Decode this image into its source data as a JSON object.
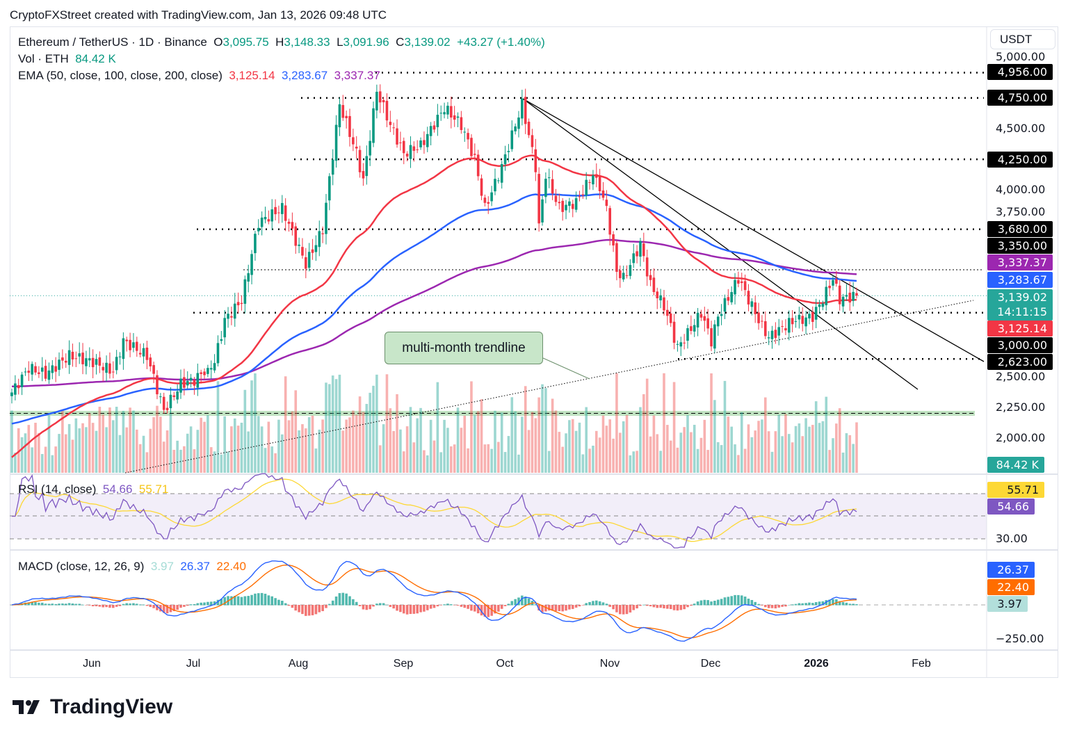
{
  "header": {
    "credit": "CryptoFXStreet created with TradingView.com, Jan 13, 2026 09:48 UTC"
  },
  "legend": {
    "symbol": "Ethereum / TetherUS · 1D · Binance",
    "o_label": "O",
    "o": "3,095.75",
    "h_label": "H",
    "h": "3,148.33",
    "l_label": "L",
    "l": "3,091.96",
    "c_label": "C",
    "c": "3,139.02",
    "change": "+43.27 (+1.40%)",
    "vol_label": "Vol · ETH",
    "vol": "84.42 K",
    "ema_label": "EMA (50, close, 100, close, 200, close)",
    "ema50": "3,125.14",
    "ema100": "3,283.67",
    "ema200": "3,337.37"
  },
  "rsi": {
    "label": "RSI (14, close)",
    "value": "54.66",
    "ma": "55.71",
    "axis_30": "30.00"
  },
  "macd": {
    "label": "MACD (close, 12, 26, 9)",
    "hist": "3.97",
    "macd": "26.37",
    "signal": "22.40",
    "axis_neg": "−250.00"
  },
  "price_axis": {
    "currency": "USDT",
    "ticks": [
      "5,000.00",
      "4,500.00",
      "4,000.00",
      "3,750.00",
      "2,500.00",
      "2,250.00",
      "2,000.00"
    ],
    "badges": {
      "b4956": "4,956.00",
      "b4750": "4,750.00",
      "b4250": "4,250.00",
      "b3680": "3,680.00",
      "b3350": "3,350.00",
      "ema200": "3,337.37",
      "ema100": "3,283.67",
      "last": "3,139.02",
      "countdown": "14:11:15",
      "ema50": "3,125.14",
      "b3000": "3,000.00",
      "b2623": "2,623.00",
      "vol": "84.42 K"
    }
  },
  "time_axis": [
    "Jun",
    "Jul",
    "Aug",
    "Sep",
    "Oct",
    "Nov",
    "Dec",
    "2026",
    "Feb"
  ],
  "annotation": "multi-month trendline",
  "logo": "TradingView",
  "colors": {
    "up": "#089981",
    "down": "#f23645",
    "ema50": "#f23645",
    "ema100": "#2962ff",
    "ema200": "#9c27b0",
    "rsi": "#7e57c2",
    "rsi_ma": "#fdd835",
    "macd": "#2962ff",
    "signal": "#ff6d00"
  },
  "chart_data": {
    "type": "candlestick",
    "symbol": "ETHUSDT",
    "interval": "1D",
    "start": "2025-05-08",
    "end": "2026-01-13",
    "price_range": [
      1900,
      5000
    ],
    "close_keypoints": [
      [
        0,
        2350
      ],
      [
        5,
        2550
      ],
      [
        10,
        2500
      ],
      [
        17,
        2650
      ],
      [
        24,
        2600
      ],
      [
        30,
        2520
      ],
      [
        33,
        2770
      ],
      [
        40,
        2650
      ],
      [
        45,
        2200
      ],
      [
        50,
        2420
      ],
      [
        54,
        2450
      ],
      [
        60,
        2600
      ],
      [
        63,
        2940
      ],
      [
        68,
        3100
      ],
      [
        73,
        3735
      ],
      [
        80,
        3850
      ],
      [
        87,
        3395
      ],
      [
        92,
        3680
      ],
      [
        97,
        4700
      ],
      [
        102,
        4300
      ],
      [
        104,
        4075
      ],
      [
        108,
        4810
      ],
      [
        112,
        4530
      ],
      [
        116,
        4300
      ],
      [
        121,
        4360
      ],
      [
        128,
        4670
      ],
      [
        133,
        4530
      ],
      [
        137,
        4250
      ],
      [
        140,
        3850
      ],
      [
        145,
        4190
      ],
      [
        151,
        4700
      ],
      [
        155,
        4190
      ],
      [
        156,
        3700
      ],
      [
        158,
        4130
      ],
      [
        162,
        3850
      ],
      [
        167,
        3900
      ],
      [
        172,
        4130
      ],
      [
        176,
        3850
      ],
      [
        179,
        3340
      ],
      [
        181,
        3280
      ],
      [
        186,
        3560
      ],
      [
        189,
        3225
      ],
      [
        193,
        3055
      ],
      [
        197,
        2715
      ],
      [
        200,
        2830
      ],
      [
        204,
        3000
      ],
      [
        207,
        2770
      ],
      [
        209,
        2970
      ],
      [
        215,
        3280
      ],
      [
        218,
        3110
      ],
      [
        222,
        2885
      ],
      [
        224,
        2800
      ],
      [
        230,
        2915
      ],
      [
        237,
        2970
      ],
      [
        240,
        3110
      ],
      [
        243,
        3280
      ],
      [
        245,
        3110
      ],
      [
        250,
        3139.02
      ]
    ],
    "ema_seed": {
      "ema50": 1800,
      "ema100": 2090,
      "ema200": 2400
    },
    "levels": [
      4956,
      4750,
      4250,
      3680,
      3350,
      3000,
      2623
    ],
    "support_zone": [
      2160,
      2200
    ],
    "rsi_levels": [
      70,
      50,
      30
    ],
    "last": {
      "open": 3095.75,
      "high": 3148.33,
      "low": 3091.96,
      "close": 3139.02
    }
  }
}
